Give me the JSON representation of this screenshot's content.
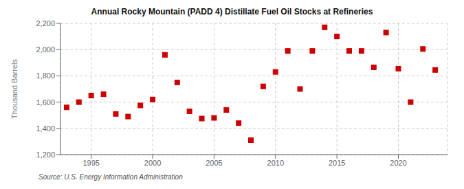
{
  "chart_data": {
    "type": "scatter",
    "title": "Annual Rocky Mountain (PADD 4) Distillate Fuel Oil Stocks at Refineries",
    "ylabel": "Thousand Barrels",
    "annotations": [
      "Source: U.S. Energy Information Administration"
    ],
    "x": [
      1993,
      1994,
      1995,
      1996,
      1997,
      1998,
      1999,
      2000,
      2001,
      2002,
      2003,
      2004,
      2005,
      2006,
      2007,
      2008,
      2009,
      2010,
      2011,
      2012,
      2013,
      2014,
      2015,
      2016,
      2017,
      2018,
      2019,
      2020,
      2021,
      2022,
      2023
    ],
    "values": [
      1560,
      1600,
      1650,
      1660,
      1510,
      1490,
      1575,
      1620,
      1960,
      1750,
      1530,
      1475,
      1480,
      1540,
      1440,
      1310,
      1720,
      1830,
      1990,
      1700,
      1990,
      2170,
      2100,
      1990,
      1990,
      1865,
      2130,
      1855,
      1600,
      2005,
      1845
    ],
    "color": "#cc0000",
    "marker": "square",
    "xlim": [
      1992.5,
      2024
    ],
    "xticks": [
      1995,
      2000,
      2005,
      2010,
      2015,
      2020
    ],
    "ylim": [
      1200,
      2200
    ],
    "yticks": [
      {
        "value": 1200,
        "label": "1,200"
      },
      {
        "value": 1400,
        "label": "1,400"
      },
      {
        "value": 1600,
        "label": "1,600"
      },
      {
        "value": 1800,
        "label": "1,800"
      },
      {
        "value": 2000,
        "label": "2,000"
      },
      {
        "value": 2200,
        "label": "2,200"
      }
    ],
    "grid": true
  }
}
